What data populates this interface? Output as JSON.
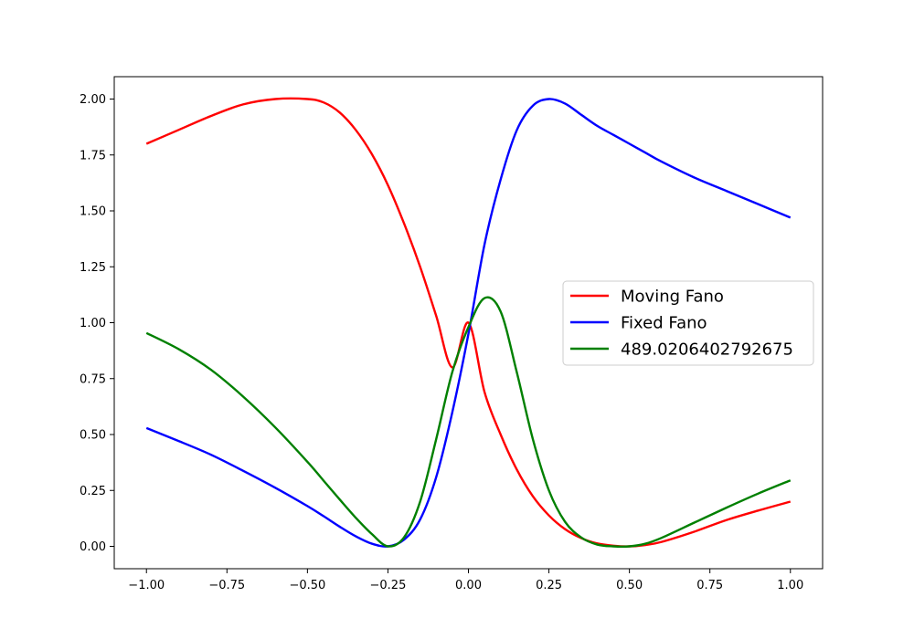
{
  "chart_data": {
    "type": "line",
    "title": "",
    "xlabel": "",
    "ylabel": "",
    "xlim": [
      -1.1,
      1.1
    ],
    "ylim": [
      -0.1,
      2.1
    ],
    "grid": false,
    "legend_position": "center-right",
    "x_ticks": [
      {
        "value": -1.0,
        "label": "−1.00"
      },
      {
        "value": -0.75,
        "label": "−0.75"
      },
      {
        "value": -0.5,
        "label": "−0.50"
      },
      {
        "value": -0.25,
        "label": "−0.25"
      },
      {
        "value": 0.0,
        "label": "0.00"
      },
      {
        "value": 0.25,
        "label": "0.25"
      },
      {
        "value": 0.5,
        "label": "0.50"
      },
      {
        "value": 0.75,
        "label": "0.75"
      },
      {
        "value": 1.0,
        "label": "1.00"
      }
    ],
    "y_ticks": [
      {
        "value": 0.0,
        "label": "0.00"
      },
      {
        "value": 0.25,
        "label": "0.25"
      },
      {
        "value": 0.5,
        "label": "0.50"
      },
      {
        "value": 0.75,
        "label": "0.75"
      },
      {
        "value": 1.0,
        "label": "1.00"
      },
      {
        "value": 1.25,
        "label": "1.25"
      },
      {
        "value": 1.5,
        "label": "1.50"
      },
      {
        "value": 1.75,
        "label": "1.75"
      },
      {
        "value": 2.0,
        "label": "2.00"
      }
    ],
    "x": [
      -1.0,
      -0.9,
      -0.8,
      -0.7,
      -0.6,
      -0.5,
      -0.45,
      -0.4,
      -0.35,
      -0.3,
      -0.25,
      -0.2,
      -0.15,
      -0.1,
      -0.05,
      0.0,
      0.05,
      0.1,
      0.15,
      0.2,
      0.25,
      0.3,
      0.35,
      0.4,
      0.45,
      0.5,
      0.55,
      0.6,
      0.7,
      0.8,
      0.9,
      1.0
    ],
    "series": [
      {
        "name": "Moving Fano",
        "color": "#ff0000",
        "values": [
          1.8,
          1.862,
          1.924,
          1.976,
          2.0,
          2.0,
          1.985,
          1.94,
          1.862,
          1.754,
          1.615,
          1.444,
          1.25,
          1.03,
          0.8,
          1.0,
          0.69,
          0.5,
          0.344,
          0.224,
          0.138,
          0.077,
          0.037,
          0.013,
          0.003,
          0.0,
          0.006,
          0.02,
          0.065,
          0.117,
          0.16,
          0.2
        ]
      },
      {
        "name": "Fixed Fano",
        "color": "#0000ff",
        "values": [
          0.529,
          0.471,
          0.41,
          0.338,
          0.262,
          0.18,
          0.135,
          0.088,
          0.045,
          0.012,
          0.0,
          0.03,
          0.12,
          0.31,
          0.6,
          0.95,
          1.35,
          1.64,
          1.86,
          1.97,
          2.0,
          1.98,
          1.93,
          1.88,
          1.84,
          1.8,
          1.76,
          1.72,
          1.65,
          1.59,
          1.53,
          1.47
        ]
      },
      {
        "name": "489.0206402792675",
        "color": "#008000",
        "values": [
          0.954,
          0.882,
          0.79,
          0.67,
          0.532,
          0.378,
          0.294,
          0.21,
          0.128,
          0.055,
          0.0,
          0.04,
          0.2,
          0.48,
          0.78,
          0.98,
          1.11,
          1.05,
          0.78,
          0.48,
          0.25,
          0.11,
          0.04,
          0.008,
          0.0,
          0.0,
          0.012,
          0.038,
          0.105,
          0.172,
          0.236,
          0.295
        ]
      }
    ]
  }
}
